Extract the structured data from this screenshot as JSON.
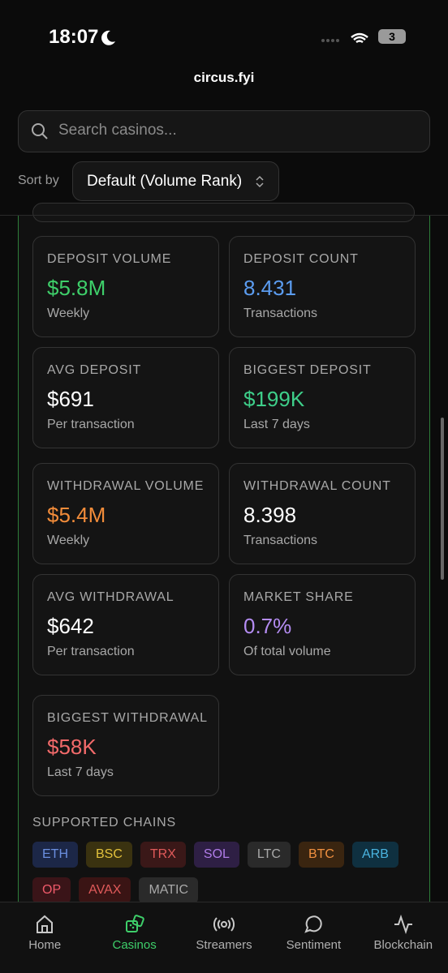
{
  "status_bar": {
    "time": "18:07",
    "battery": "3"
  },
  "url": "circus.fyi",
  "search": {
    "placeholder": "Search casinos..."
  },
  "sort": {
    "label": "Sort by",
    "value": "Default (Volume Rank)"
  },
  "stats": [
    {
      "label": "DEPOSIT VOLUME",
      "value": "$5.8M",
      "sub": "Weekly",
      "color": "#3ecf6a"
    },
    {
      "label": "DEPOSIT COUNT",
      "value": "8.431",
      "sub": "Transactions",
      "color": "#5b9cf0"
    },
    {
      "label": "AVG DEPOSIT",
      "value": "$691",
      "sub": "Per transaction",
      "color": "#ffffff"
    },
    {
      "label": "BIGGEST DEPOSIT",
      "value": "$199K",
      "sub": "Last 7 days",
      "color": "#3ecf8a"
    },
    {
      "label": "WITHDRAWAL VOLUME",
      "value": "$5.4M",
      "sub": "Weekly",
      "color": "#f28c3a"
    },
    {
      "label": "WITHDRAWAL COUNT",
      "value": "8.398",
      "sub": "Transactions",
      "color": "#ffffff"
    },
    {
      "label": "AVG WITHDRAWAL",
      "value": "$642",
      "sub": "Per transaction",
      "color": "#ffffff"
    },
    {
      "label": "MARKET SHARE",
      "value": "0.7%",
      "sub": "Of total volume",
      "color": "#b48cf2"
    },
    {
      "label": "BIGGEST WITHDRAWAL",
      "value": "$58K",
      "sub": "Last 7 days",
      "color": "#f26a6a"
    }
  ],
  "chains": {
    "title": "SUPPORTED CHAINS",
    "items": [
      {
        "name": "ETH",
        "color": "#6b8fe0",
        "bg": "#1c2747"
      },
      {
        "name": "BSC",
        "color": "#e2c13c",
        "bg": "#3a3210"
      },
      {
        "name": "TRX",
        "color": "#e05a5a",
        "bg": "#3a1818"
      },
      {
        "name": "SOL",
        "color": "#b07ce8",
        "bg": "#2e1f44"
      },
      {
        "name": "LTC",
        "color": "#a8a8a8",
        "bg": "#2a2a2a"
      },
      {
        "name": "BTC",
        "color": "#f09040",
        "bg": "#3a2510"
      },
      {
        "name": "ARB",
        "color": "#4ab4e0",
        "bg": "#0f3040"
      },
      {
        "name": "OP",
        "color": "#f05a6a",
        "bg": "#3a1418"
      },
      {
        "name": "AVAX",
        "color": "#e05a5a",
        "bg": "#3a1414"
      },
      {
        "name": "MATIC",
        "color": "#a8a8a8",
        "bg": "#2a2a2a"
      }
    ]
  },
  "nav": [
    {
      "label": "Home",
      "active": false
    },
    {
      "label": "Casinos",
      "active": true
    },
    {
      "label": "Streamers",
      "active": false
    },
    {
      "label": "Sentiment",
      "active": false
    },
    {
      "label": "Blockchain",
      "active": false
    }
  ]
}
